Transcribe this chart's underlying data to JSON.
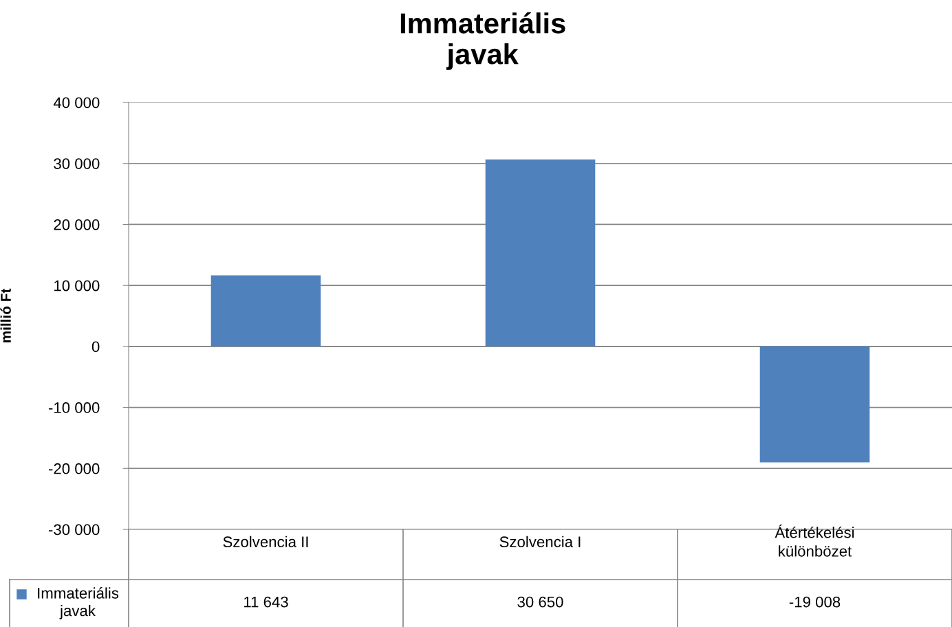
{
  "chart_data": {
    "type": "bar",
    "title": "Immateriális javak",
    "ylabel": "millió Ft",
    "categories": [
      "Szolvencia II",
      "Szolvencia I",
      "Átértékelési különbözet"
    ],
    "series": [
      {
        "name": "Immateriális javak",
        "color": "#4f81bd",
        "values": [
          11643,
          30650,
          -19008
        ],
        "value_labels": [
          "11 643",
          "30 650",
          "-19 008"
        ]
      }
    ],
    "ylim": [
      -30000,
      40000
    ],
    "yticks": [
      {
        "value": -30000,
        "label": "-30 000"
      },
      {
        "value": -20000,
        "label": "-20 000"
      },
      {
        "value": -10000,
        "label": "-10 000"
      },
      {
        "value": 0,
        "label": "0"
      },
      {
        "value": 10000,
        "label": "10 000"
      },
      {
        "value": 20000,
        "label": "20 000"
      },
      {
        "value": 30000,
        "label": "30 000"
      },
      {
        "value": 40000,
        "label": "40 000"
      }
    ],
    "grid": "y",
    "legend": "bottom left"
  }
}
